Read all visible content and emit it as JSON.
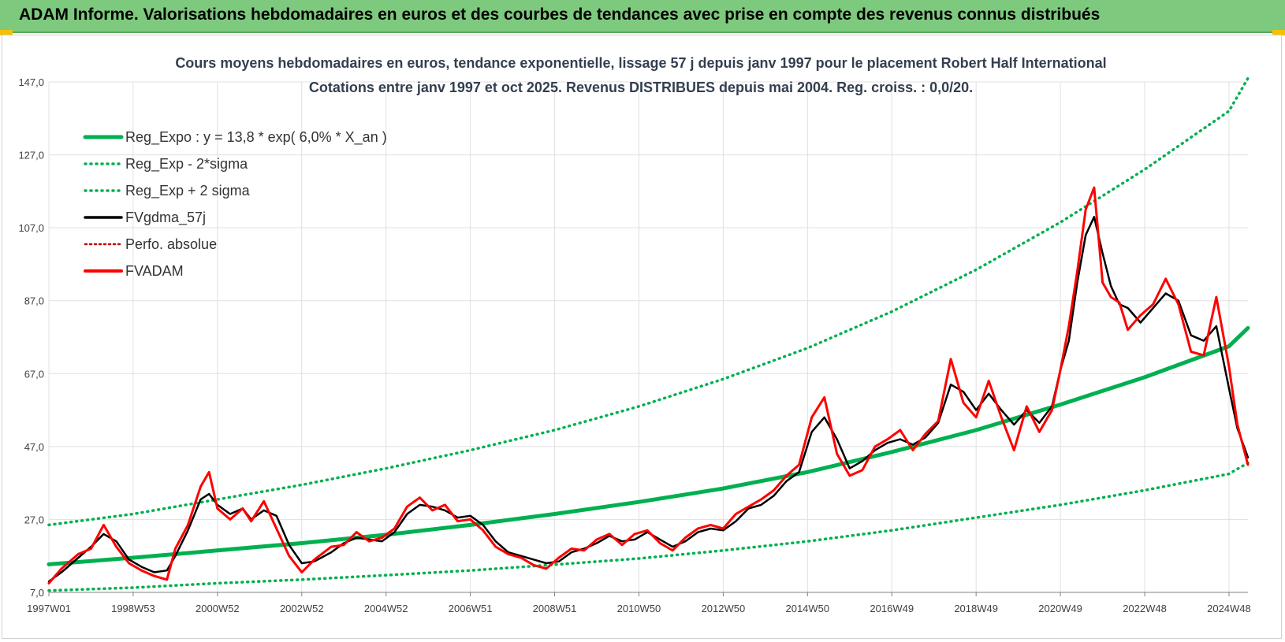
{
  "header": {
    "title": "ADAM Informe. Valorisations hebdomadaires en euros et des courbes de tendances avec prise en compte des revenus connus distribués"
  },
  "colors": {
    "header_bg": "#7dc97d",
    "trend_green": "#00b050",
    "fvgdma_black": "#000000",
    "fvadam_red": "#ff0000",
    "perfo_red": "#c00000",
    "title_text": "#333f50",
    "grid": "#e0e0e0"
  },
  "chart_data": {
    "type": "line",
    "title": "Cours moyens hebdomadaires en euros, tendance exponentielle, lissage 57 j depuis janv 1997 pour le placement Robert Half International",
    "subtitle": "Cotations entre janv 1997 et oct 2025. Revenus DISTRIBUES depuis mai 2004.  Reg. croiss. : 0,0/20.",
    "xlabel": "",
    "ylabel": "",
    "x_ticks": [
      "1997W01",
      "1998W53",
      "2000W52",
      "2002W52",
      "2004W52",
      "2006W51",
      "2008W51",
      "2010W50",
      "2012W50",
      "2014W50",
      "2016W49",
      "2018W49",
      "2020W49",
      "2022W48",
      "2024W48"
    ],
    "x_tick_years": [
      1997.0,
      1999.0,
      2001.0,
      2003.0,
      2005.0,
      2007.0,
      2009.0,
      2011.0,
      2013.0,
      2015.0,
      2017.0,
      2019.0,
      2021.0,
      2023.0,
      2025.0
    ],
    "xlim": [
      1997.0,
      2025.45
    ],
    "y_ticks": [
      "7,0",
      "27,0",
      "47,0",
      "67,0",
      "87,0",
      "107,0",
      "127,0",
      "147,0"
    ],
    "ylim": [
      7,
      147
    ],
    "grid": true,
    "legend_position": "top-left",
    "legend": [
      {
        "label": "Reg_Expo : y = 13,8 * exp( 6,0% *  X_an )",
        "style": "thick-solid-green"
      },
      {
        "label": "Reg_Exp - 2*sigma",
        "style": "dotted-green"
      },
      {
        "label": "Reg_Exp + 2 sigma",
        "style": "dotted-green"
      },
      {
        "label": "FVgdma_57j",
        "style": "solid-black"
      },
      {
        "label": "Perfo. absolue",
        "style": "dotted-red"
      },
      {
        "label": "FVADAM",
        "style": "solid-red"
      }
    ],
    "series": [
      {
        "name": "Reg_Expo : y = 13,8 * exp( 6,0% *  X_an )",
        "x": [
          1997.0,
          1999.0,
          2001.0,
          2003.0,
          2005.0,
          2007.0,
          2009.0,
          2011.0,
          2013.0,
          2015.0,
          2017.0,
          2019.0,
          2021.0,
          2023.0,
          2025.0,
          2025.45
        ],
        "y": [
          14.7,
          16.5,
          18.5,
          20.5,
          22.8,
          25.5,
          28.5,
          31.8,
          35.5,
          40.0,
          45.5,
          51.5,
          58.5,
          66.0,
          74.5,
          79.5
        ]
      },
      {
        "name": "Reg_Exp - 2*sigma",
        "x": [
          1997.0,
          1999.0,
          2001.0,
          2003.0,
          2005.0,
          2007.0,
          2009.0,
          2011.0,
          2013.0,
          2015.0,
          2017.0,
          2019.0,
          2021.0,
          2023.0,
          2025.0,
          2025.45
        ],
        "y": [
          7.5,
          8.3,
          9.5,
          10.5,
          11.7,
          13.0,
          14.6,
          16.3,
          18.5,
          21.0,
          24.0,
          27.5,
          31.0,
          35.0,
          39.5,
          42.5
        ]
      },
      {
        "name": "Reg_Exp + 2 sigma",
        "x": [
          1997.0,
          1999.0,
          2001.0,
          2003.0,
          2005.0,
          2007.0,
          2009.0,
          2011.0,
          2013.0,
          2015.0,
          2017.0,
          2019.0,
          2021.0,
          2023.0,
          2025.0,
          2025.45
        ],
        "y": [
          25.5,
          28.5,
          32.5,
          36.5,
          41.0,
          46.0,
          51.5,
          58.0,
          65.5,
          74.0,
          84.0,
          95.5,
          108.5,
          123.0,
          139.0,
          148.0
        ]
      },
      {
        "name": "FVgdma_57j",
        "x": [
          1997.0,
          1997.3,
          1997.7,
          1998.0,
          1998.3,
          1998.6,
          1998.9,
          1999.2,
          1999.5,
          1999.8,
          2000.0,
          2000.3,
          2000.6,
          2000.8,
          2001.0,
          2001.3,
          2001.6,
          2001.8,
          2002.1,
          2002.4,
          2002.7,
          2003.0,
          2003.3,
          2003.7,
          2004.0,
          2004.3,
          2004.6,
          2004.9,
          2005.2,
          2005.5,
          2005.8,
          2006.1,
          2006.4,
          2006.7,
          2007.0,
          2007.3,
          2007.6,
          2007.9,
          2008.2,
          2008.5,
          2008.8,
          2009.1,
          2009.4,
          2009.7,
          2010.0,
          2010.3,
          2010.6,
          2010.9,
          2011.2,
          2011.5,
          2011.8,
          2012.1,
          2012.4,
          2012.7,
          2013.0,
          2013.3,
          2013.6,
          2013.9,
          2014.2,
          2014.5,
          2014.8,
          2015.1,
          2015.4,
          2015.7,
          2016.0,
          2016.3,
          2016.6,
          2016.9,
          2017.2,
          2017.5,
          2017.8,
          2018.1,
          2018.4,
          2018.7,
          2019.0,
          2019.3,
          2019.6,
          2019.9,
          2020.2,
          2020.5,
          2020.8,
          2021.0,
          2021.2,
          2021.4,
          2021.6,
          2021.8,
          2022.0,
          2022.2,
          2022.4,
          2022.6,
          2022.9,
          2023.2,
          2023.5,
          2023.8,
          2024.1,
          2024.4,
          2024.7,
          2025.0,
          2025.2,
          2025.45
        ],
        "y": [
          10.0,
          12.5,
          16.5,
          19.5,
          23.0,
          21.0,
          16.0,
          14.0,
          12.5,
          13.0,
          17.0,
          24.0,
          32.5,
          34.0,
          31.0,
          28.5,
          30.0,
          27.0,
          29.5,
          28.0,
          20.0,
          15.0,
          15.5,
          18.0,
          20.5,
          22.0,
          21.5,
          21.0,
          23.5,
          28.5,
          31.0,
          30.5,
          29.5,
          27.5,
          28.0,
          25.5,
          21.0,
          18.0,
          17.0,
          16.0,
          15.0,
          15.5,
          18.0,
          19.0,
          20.5,
          22.5,
          21.0,
          21.5,
          23.5,
          21.5,
          19.5,
          21.0,
          23.5,
          24.5,
          24.0,
          26.5,
          30.0,
          31.0,
          33.5,
          37.5,
          40.0,
          51.0,
          55.0,
          49.0,
          41.0,
          43.0,
          46.0,
          48.0,
          49.0,
          47.5,
          49.5,
          53.5,
          64.0,
          62.0,
          57.0,
          61.5,
          57.0,
          53.0,
          57.0,
          53.5,
          58.0,
          68.0,
          76.0,
          92.0,
          105.0,
          110.0,
          100.0,
          91.0,
          86.0,
          85.0,
          81.0,
          85.0,
          89.0,
          87.0,
          77.5,
          76.0,
          80.0,
          63.0,
          52.0,
          44.0
        ]
      },
      {
        "name": "FVADAM",
        "x": [
          1997.0,
          1997.3,
          1997.7,
          1998.0,
          1998.3,
          1998.6,
          1998.9,
          1999.2,
          1999.5,
          1999.8,
          2000.0,
          2000.3,
          2000.6,
          2000.8,
          2001.0,
          2001.3,
          2001.6,
          2001.8,
          2002.1,
          2002.4,
          2002.7,
          2003.0,
          2003.3,
          2003.7,
          2004.0,
          2004.3,
          2004.6,
          2004.9,
          2005.2,
          2005.5,
          2005.8,
          2006.1,
          2006.4,
          2006.7,
          2007.0,
          2007.3,
          2007.6,
          2007.9,
          2008.2,
          2008.5,
          2008.8,
          2009.1,
          2009.4,
          2009.7,
          2010.0,
          2010.3,
          2010.6,
          2010.9,
          2011.2,
          2011.5,
          2011.8,
          2012.1,
          2012.4,
          2012.7,
          2013.0,
          2013.3,
          2013.6,
          2013.9,
          2014.2,
          2014.5,
          2014.8,
          2015.1,
          2015.4,
          2015.7,
          2016.0,
          2016.3,
          2016.6,
          2016.9,
          2017.2,
          2017.5,
          2017.8,
          2018.1,
          2018.4,
          2018.7,
          2019.0,
          2019.3,
          2019.6,
          2019.9,
          2020.2,
          2020.5,
          2020.8,
          2021.0,
          2021.2,
          2021.4,
          2021.6,
          2021.8,
          2022.0,
          2022.2,
          2022.4,
          2022.6,
          2022.9,
          2023.2,
          2023.5,
          2023.8,
          2024.1,
          2024.4,
          2024.7,
          2025.0,
          2025.2,
          2025.45
        ],
        "y": [
          9.5,
          13.5,
          17.5,
          19.0,
          25.5,
          19.5,
          15.0,
          13.0,
          11.5,
          10.5,
          19.0,
          25.5,
          36.0,
          40.0,
          30.0,
          27.0,
          30.0,
          26.5,
          32.0,
          24.5,
          17.0,
          12.5,
          16.0,
          19.5,
          20.0,
          23.5,
          21.0,
          22.0,
          24.5,
          30.5,
          33.0,
          29.5,
          31.0,
          26.5,
          27.0,
          24.0,
          19.5,
          17.5,
          16.5,
          14.5,
          13.5,
          16.5,
          19.0,
          18.5,
          21.5,
          23.0,
          20.0,
          23.0,
          24.0,
          20.5,
          18.5,
          22.0,
          24.5,
          25.5,
          24.5,
          28.5,
          30.5,
          32.5,
          35.0,
          39.0,
          42.0,
          55.0,
          60.5,
          45.0,
          39.0,
          40.5,
          47.0,
          49.0,
          51.5,
          46.0,
          50.5,
          54.0,
          71.0,
          59.0,
          55.0,
          65.0,
          55.0,
          46.0,
          58.0,
          51.0,
          57.0,
          68.0,
          80.0,
          95.0,
          112.0,
          118.0,
          92.0,
          88.0,
          86.5,
          79.0,
          83.0,
          86.0,
          93.0,
          86.0,
          73.0,
          72.0,
          88.0,
          69.0,
          53.0,
          42.0
        ]
      }
    ]
  }
}
